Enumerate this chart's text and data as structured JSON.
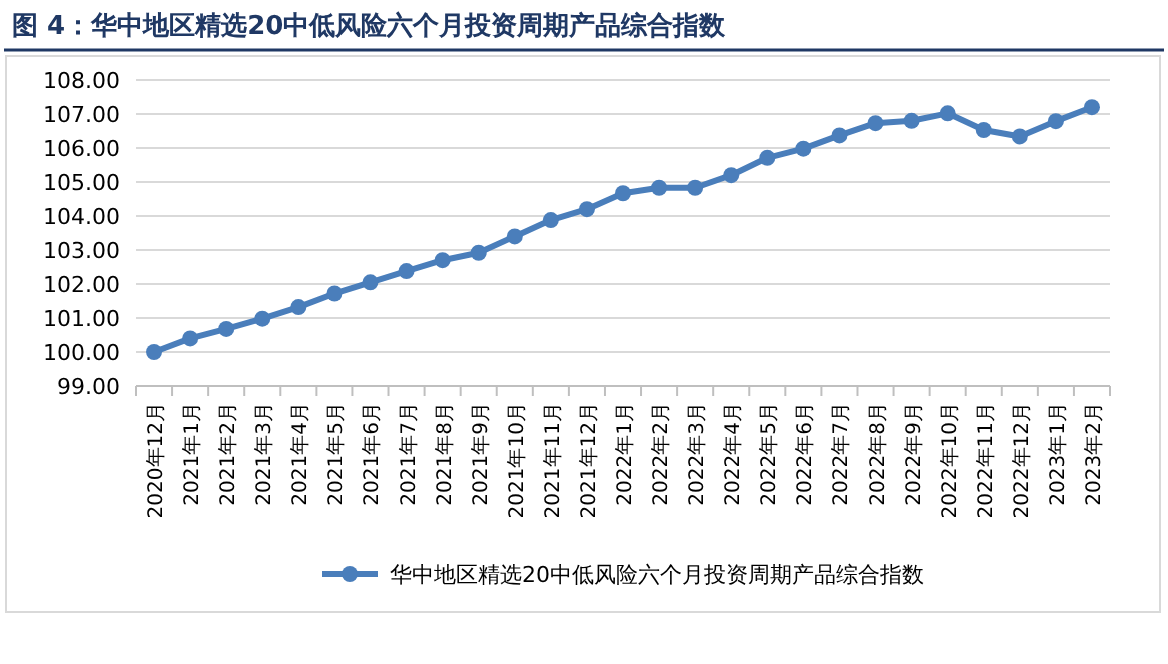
{
  "chart_data": {
    "type": "line",
    "title": "图 4：华中地区精选20中低风险六个月投资周期产品综合指数",
    "categories": [
      "2020年12月",
      "2021年1月",
      "2021年2月",
      "2021年3月",
      "2021年4月",
      "2021年5月",
      "2021年6月",
      "2021年7月",
      "2021年8月",
      "2021年9月",
      "2021年10月",
      "2021年11月",
      "2021年12月",
      "2022年1月",
      "2022年2月",
      "2022年3月",
      "2022年4月",
      "2022年5月",
      "2022年6月",
      "2022年7月",
      "2022年8月",
      "2022年9月",
      "2022年10月",
      "2022年11月",
      "2022年12月",
      "2023年1月",
      "2023年2月"
    ],
    "series": [
      {
        "name": "华中地区精选20中低风险六个月投资周期产品综合指数",
        "color": "#4a7ebb",
        "values": [
          100.0,
          100.4,
          100.68,
          100.98,
          101.32,
          101.72,
          102.05,
          102.38,
          102.7,
          102.92,
          103.4,
          103.88,
          104.2,
          104.67,
          104.83,
          104.83,
          105.2,
          105.71,
          105.98,
          106.37,
          106.73,
          106.8,
          107.02,
          106.53,
          106.34,
          106.79,
          107.2
        ]
      }
    ],
    "ylim": [
      99,
      108
    ],
    "yticks": [
      {
        "value": 99,
        "label": "99.00"
      },
      {
        "value": 100,
        "label": "100.00"
      },
      {
        "value": 101,
        "label": "101.00"
      },
      {
        "value": 102,
        "label": "102.00"
      },
      {
        "value": 103,
        "label": "103.00"
      },
      {
        "value": 104,
        "label": "104.00"
      },
      {
        "value": 105,
        "label": "105.00"
      },
      {
        "value": 106,
        "label": "106.00"
      },
      {
        "value": 107,
        "label": "107.00"
      },
      {
        "value": 108,
        "label": "108.00"
      }
    ],
    "grid": "y",
    "legend": "bottom",
    "marker": "circle",
    "line_style": "solid"
  }
}
